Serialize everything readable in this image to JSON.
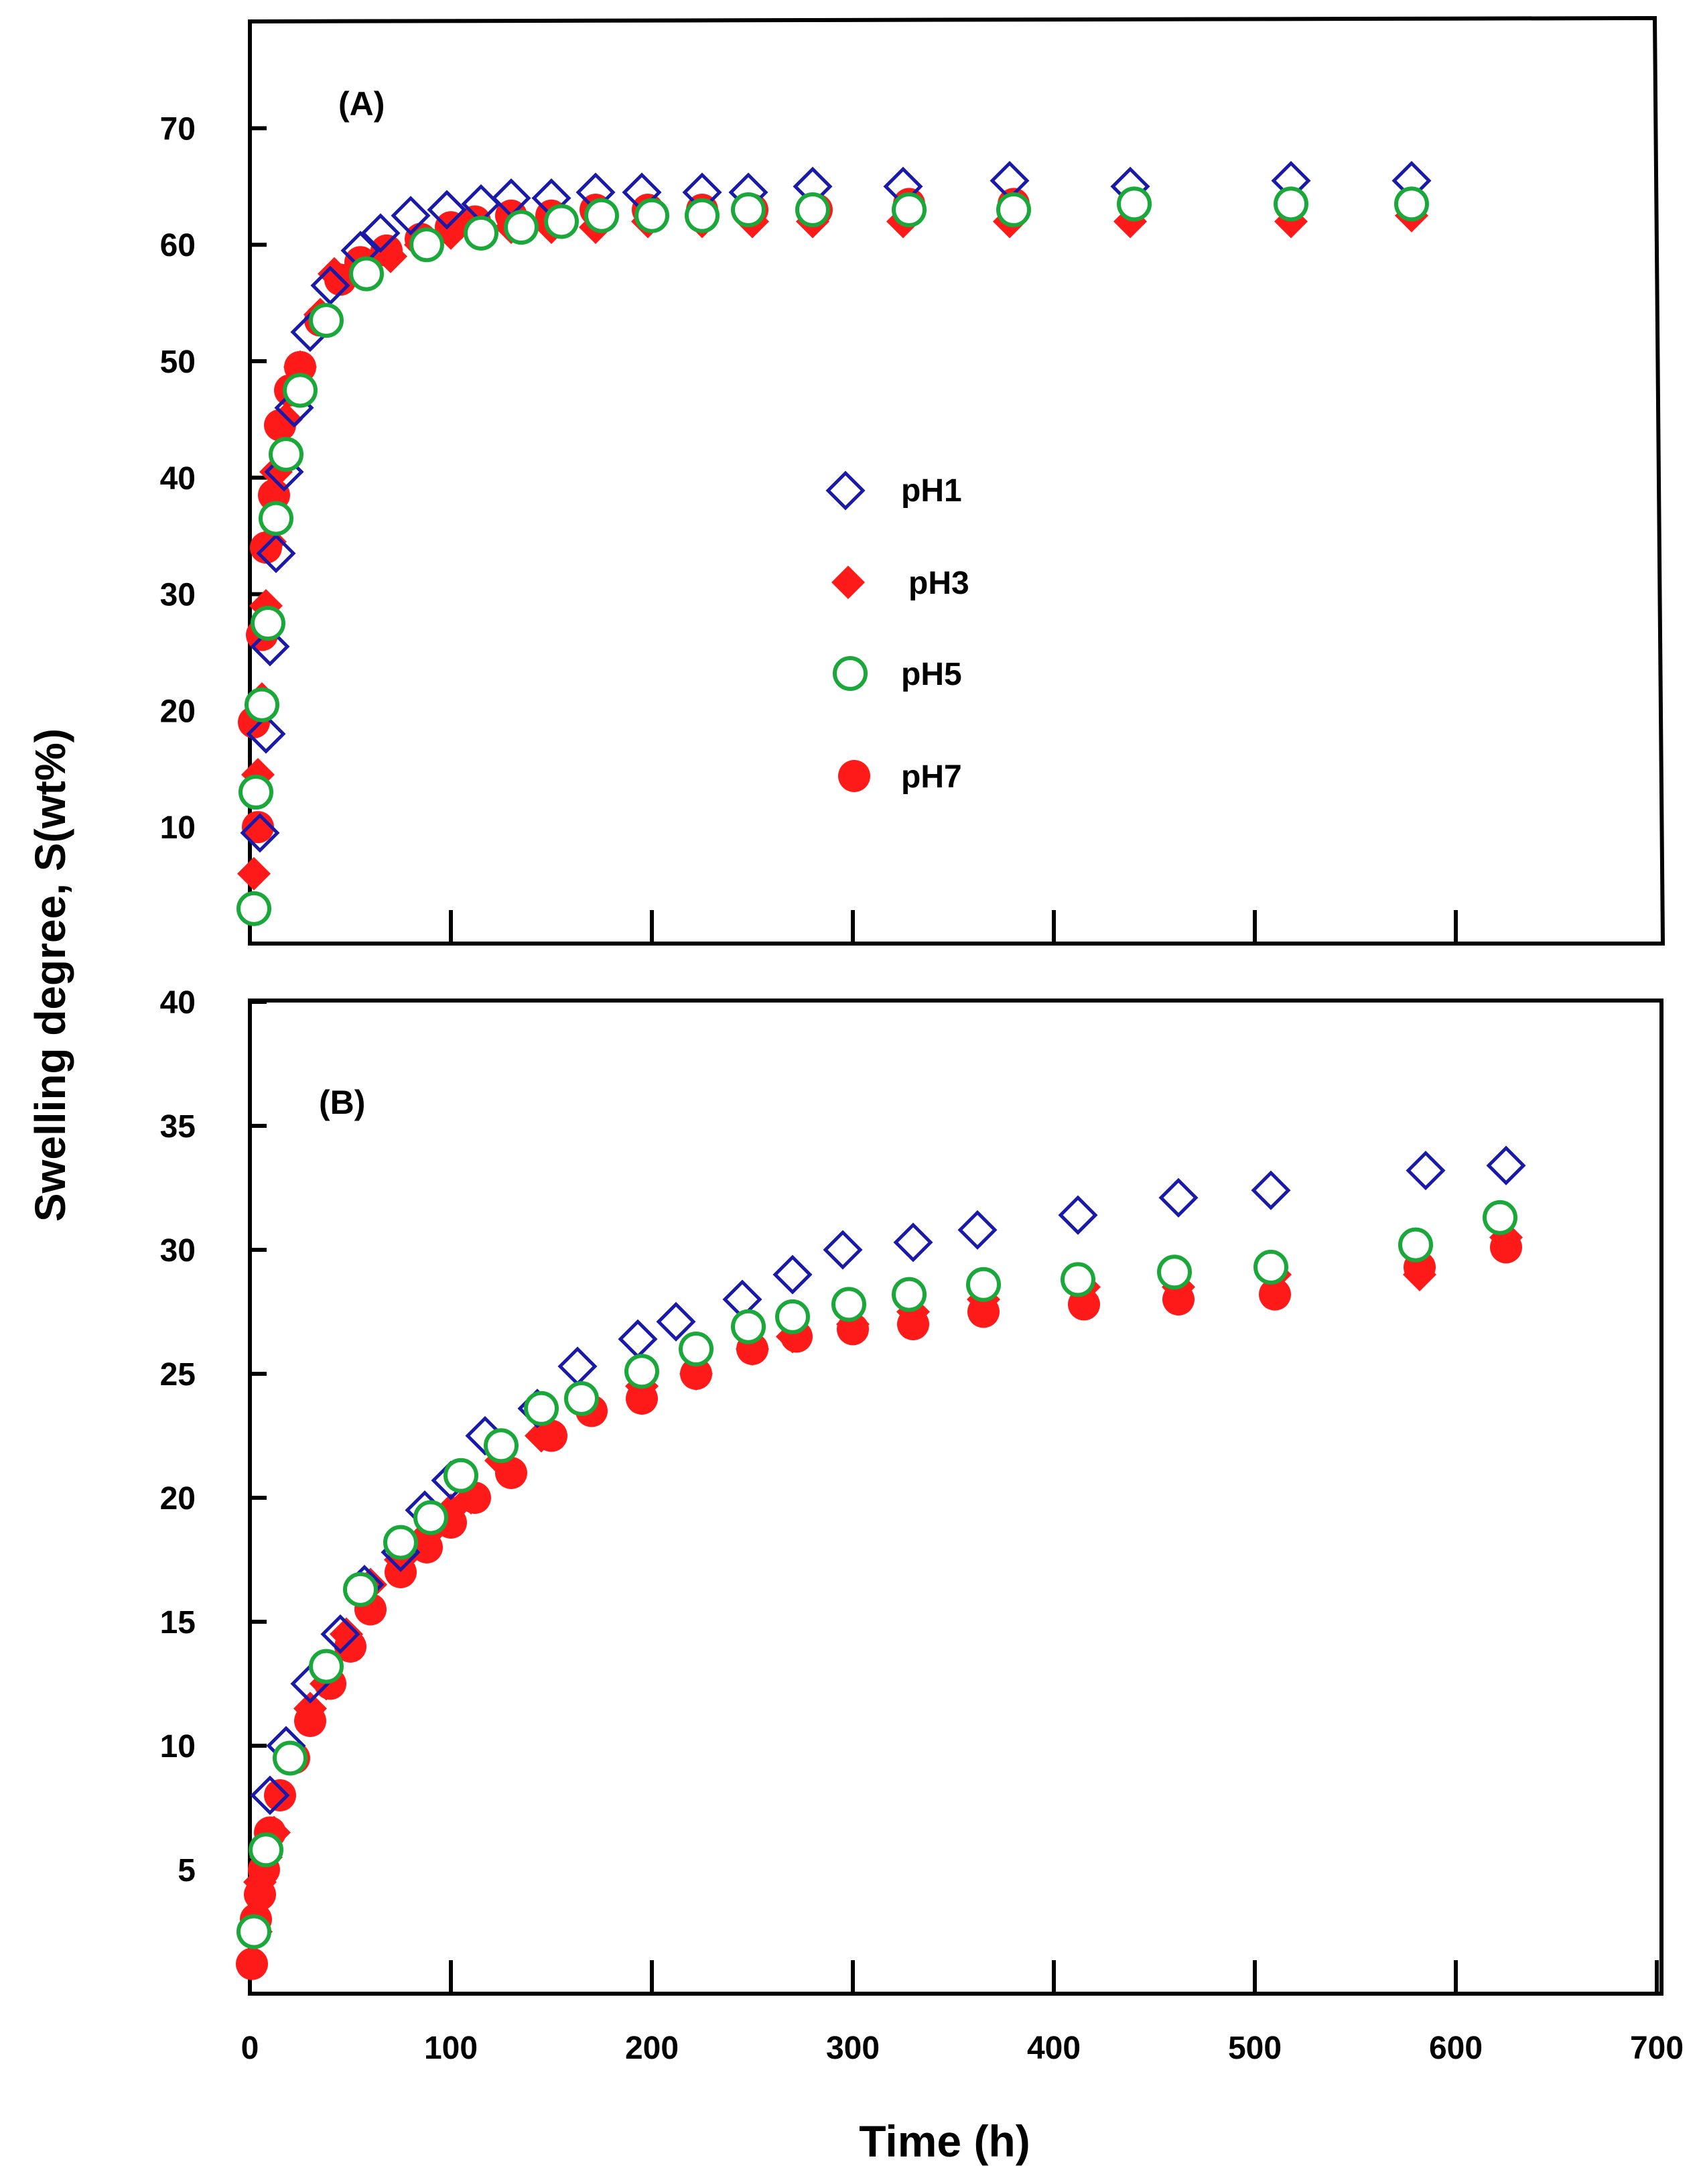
{
  "figure": {
    "ylabel": "Swelling degree, S(wt%)",
    "xlabel": "Time (h)",
    "colors": {
      "pH1": "#1a1aa8",
      "pH3": "#ff1a1a",
      "pH5": "#1aa83a",
      "pH7": "#ff1a1a",
      "axis": "#000000"
    }
  },
  "chart_data": [
    {
      "type": "scatter",
      "panel_label": "(A)",
      "xlabel": "Time (h)",
      "ylabel": "Swelling degree, S(wt%)",
      "xlim": [
        0,
        700
      ],
      "ylim": [
        0,
        80
      ],
      "x_ticks": [
        100,
        200,
        300,
        400,
        500,
        600
      ],
      "y_ticks": [
        10,
        20,
        30,
        40,
        50,
        60,
        70
      ],
      "y_tick_labels": [
        "10",
        "20",
        "30",
        "40",
        "50",
        "60",
        "70"
      ],
      "legend_position": "center-right",
      "series": [
        {
          "name": "pH1",
          "marker": "open-diamond",
          "x": [
            5,
            8,
            10,
            13,
            17,
            22,
            30,
            40,
            55,
            65,
            80,
            98,
            115,
            130,
            150,
            172,
            195,
            225,
            248,
            280,
            325,
            378,
            438,
            518,
            578
          ],
          "y": [
            9.5,
            18,
            25.5,
            33.5,
            40.5,
            46,
            52.5,
            56.5,
            59.5,
            61,
            62.5,
            63,
            63.5,
            64,
            64,
            64.5,
            64.5,
            64.5,
            64.5,
            65,
            65,
            65.5,
            65,
            65.5,
            65.5
          ]
        },
        {
          "name": "pH3",
          "marker": "filled-diamond",
          "x": [
            2,
            4,
            6,
            8,
            10,
            13,
            18,
            25,
            35,
            42,
            58,
            70,
            85,
            100,
            115,
            130,
            150,
            172,
            198,
            225,
            250,
            280,
            325,
            378,
            438,
            518,
            578
          ],
          "y": [
            6,
            14.5,
            21,
            29,
            34.5,
            40.5,
            45,
            49.5,
            54,
            57.5,
            58,
            59,
            60,
            61,
            61.5,
            61.5,
            61.5,
            61.5,
            62,
            62,
            62,
            62,
            62,
            62,
            62,
            62,
            62.5
          ]
        },
        {
          "name": "pH5",
          "marker": "open-circle",
          "x": [
            2,
            3,
            6,
            9,
            13,
            18,
            25,
            38,
            58,
            88,
            115,
            135,
            155,
            175,
            200,
            225,
            248,
            280,
            328,
            380,
            440,
            518,
            578
          ],
          "y": [
            3,
            13,
            20.5,
            27.5,
            36.5,
            42,
            47.5,
            53.5,
            57.5,
            60,
            61,
            61.5,
            62,
            62.5,
            62.5,
            62.5,
            63,
            63,
            63,
            63,
            63.5,
            63.5,
            63.5
          ]
        },
        {
          "name": "pH7",
          "marker": "filled-circle",
          "x": [
            2,
            4,
            6,
            8,
            12,
            15,
            20,
            25,
            35,
            45,
            55,
            68,
            85,
            100,
            112,
            130,
            150,
            172,
            198,
            225,
            250,
            282,
            328,
            380,
            440,
            518,
            578
          ],
          "y": [
            19,
            10,
            26.5,
            34,
            38.5,
            44.5,
            47.5,
            49.5,
            53.5,
            57,
            58.5,
            59.5,
            60.5,
            61.5,
            62,
            62.5,
            62.5,
            63,
            63,
            63,
            63,
            63,
            63.5,
            63.5,
            63.5,
            63.5,
            63.5
          ]
        }
      ]
    },
    {
      "type": "scatter",
      "panel_label": "(B)",
      "xlabel": "Time (h)",
      "ylabel": "Swelling degree, S(wt%)",
      "xlim": [
        0,
        700
      ],
      "ylim": [
        0,
        40
      ],
      "x_ticks": [
        0,
        100,
        200,
        300,
        400,
        500,
        600,
        700
      ],
      "x_tick_labels": [
        "0",
        "100",
        "200",
        "300",
        "400",
        "500",
        "600",
        "700"
      ],
      "y_ticks": [
        5,
        10,
        15,
        20,
        25,
        30,
        35,
        40
      ],
      "y_tick_labels": [
        "5",
        "10",
        "15",
        "20",
        "25",
        "30",
        "35",
        "40"
      ],
      "series": [
        {
          "name": "pH1",
          "marker": "open-diamond",
          "x": [
            10,
            18,
            30,
            45,
            57,
            75,
            87,
            100,
            117,
            143,
            163,
            193,
            212,
            245,
            270,
            295,
            330,
            362,
            412,
            462,
            508,
            585,
            625
          ],
          "y": [
            8,
            10,
            12.5,
            14.5,
            16.5,
            17.8,
            19.5,
            20.7,
            22.5,
            23.6,
            25.3,
            26.4,
            27.1,
            28,
            29,
            30,
            30.3,
            30.8,
            31.4,
            32.1,
            32.4,
            33.2,
            33.4
          ]
        },
        {
          "name": "pH3",
          "marker": "filled-diamond",
          "x": [
            3,
            5,
            8,
            12,
            20,
            30,
            38,
            48,
            60,
            75,
            88,
            100,
            110,
            125,
            145,
            165,
            195,
            222,
            250,
            270,
            300,
            330,
            365,
            415,
            462,
            510,
            582,
            625
          ],
          "y": [
            2.5,
            4.5,
            5.5,
            6.5,
            9.5,
            11.5,
            12.5,
            14.5,
            16.5,
            17.5,
            18.5,
            19.5,
            20,
            21.5,
            22.5,
            24,
            24.5,
            25,
            26,
            26.5,
            27,
            27.5,
            28,
            28.5,
            28.5,
            29,
            29,
            30.5
          ]
        },
        {
          "name": "pH5",
          "marker": "open-circle",
          "x": [
            2,
            8,
            20,
            38,
            55,
            75,
            90,
            105,
            125,
            145,
            165,
            195,
            222,
            248,
            270,
            298,
            328,
            365,
            412,
            460,
            508,
            580,
            622
          ],
          "y": [
            2.5,
            5.8,
            9.5,
            13.2,
            16.3,
            18.2,
            19.2,
            20.9,
            22.1,
            23.6,
            24,
            25.1,
            26,
            26.9,
            27.3,
            27.8,
            28.2,
            28.6,
            28.8,
            29.1,
            29.3,
            30.2,
            31.3
          ]
        },
        {
          "name": "pH7",
          "marker": "filled-circle",
          "x": [
            1,
            3,
            5,
            7,
            10,
            15,
            22,
            30,
            40,
            50,
            60,
            75,
            88,
            100,
            112,
            130,
            150,
            170,
            195,
            222,
            250,
            272,
            300,
            330,
            365,
            415,
            462,
            510,
            582,
            625
          ],
          "y": [
            1.2,
            3,
            4,
            5,
            6.5,
            8,
            9.5,
            11,
            12.5,
            14,
            15.5,
            17,
            18,
            19,
            20,
            21,
            22.5,
            23.5,
            24,
            25,
            26,
            26.5,
            26.8,
            27,
            27.5,
            27.8,
            28,
            28.2,
            29.3,
            30.1
          ]
        }
      ]
    }
  ]
}
